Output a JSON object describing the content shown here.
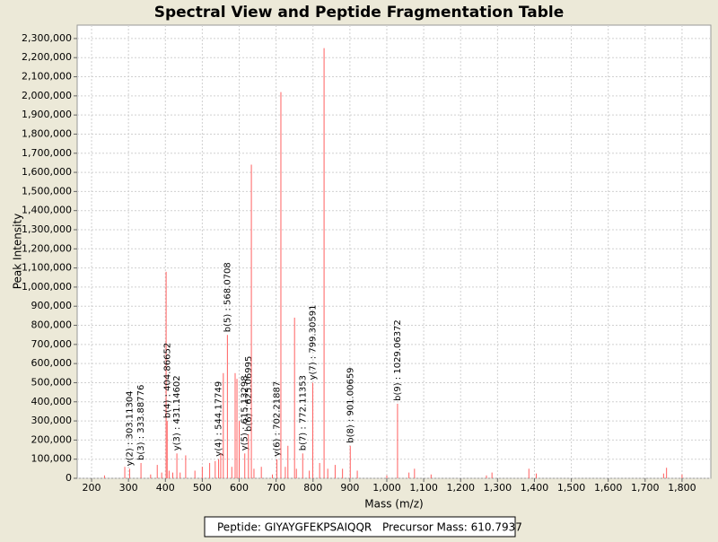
{
  "chart_data": {
    "type": "spectrum",
    "title": "Spectral View and Peptide Fragmentation Table",
    "x_label": "Mass (m/z)",
    "y_label": "Peak Intensity",
    "color": "#ff6060",
    "grid": true,
    "xlim": [
      161,
      1878
    ],
    "ylim": [
      0,
      2370000
    ],
    "xticks": [
      200,
      300,
      400,
      500,
      600,
      700,
      800,
      900,
      {
        "value": 1000,
        "label": "1,000"
      },
      {
        "value": 1100,
        "label": "1,100"
      },
      {
        "value": 1200,
        "label": "1,200"
      },
      {
        "value": 1300,
        "label": "1,300"
      },
      {
        "value": 1400,
        "label": "1,400"
      },
      {
        "value": 1500,
        "label": "1,500"
      },
      {
        "value": 1600,
        "label": "1,600"
      },
      {
        "value": 1700,
        "label": "1,700"
      },
      {
        "value": 1800,
        "label": "1,800"
      }
    ],
    "yticks": [
      0,
      {
        "value": 100000,
        "label": "100,000"
      },
      {
        "value": 200000,
        "label": "200,000"
      },
      {
        "value": 300000,
        "label": "300,000"
      },
      {
        "value": 400000,
        "label": "400,000"
      },
      {
        "value": 500000,
        "label": "500,000"
      },
      {
        "value": 600000,
        "label": "600,000"
      },
      {
        "value": 700000,
        "label": "700,000"
      },
      {
        "value": 800000,
        "label": "800,000"
      },
      {
        "value": 900000,
        "label": "900,000"
      },
      {
        "value": 1000000,
        "label": "1,000,000"
      },
      {
        "value": 1100000,
        "label": "1,100,000"
      },
      {
        "value": 1200000,
        "label": "1,200,000"
      },
      {
        "value": 1300000,
        "label": "1,300,000"
      },
      {
        "value": 1400000,
        "label": "1,400,000"
      },
      {
        "value": 1500000,
        "label": "1,500,000"
      },
      {
        "value": 1600000,
        "label": "1,600,000"
      },
      {
        "value": 1700000,
        "label": "1,700,000"
      },
      {
        "value": 1800000,
        "label": "1,800,000"
      },
      {
        "value": 1900000,
        "label": "1,900,000"
      },
      {
        "value": 2000000,
        "label": "2,000,000"
      },
      {
        "value": 2100000,
        "label": "2,100,000"
      },
      {
        "value": 2200000,
        "label": "2,200,000"
      },
      {
        "value": 2300000,
        "label": "2,300,000"
      }
    ],
    "x": [
      235,
      290,
      303.11304,
      333.88776,
      360,
      378,
      390,
      402,
      404.86652,
      410,
      420,
      431.14602,
      440,
      455,
      480,
      500,
      520,
      535,
      544.17749,
      550,
      557,
      568.0708,
      580,
      589,
      594,
      600,
      615.13298,
      625.06995,
      633,
      640,
      660,
      690,
      702.21887,
      713,
      725,
      732,
      750,
      755,
      772.11353,
      790,
      799.30591,
      818,
      830,
      840,
      860,
      880,
      901.00659,
      920,
      1000,
      1029.06372,
      1060,
      1075,
      1120,
      1270,
      1285,
      1385,
      1405,
      1750,
      1758,
      1800
    ],
    "values": [
      15000,
      60000,
      50000,
      80000,
      20000,
      70000,
      30000,
      1080000,
      300000,
      40000,
      30000,
      130000,
      30000,
      120000,
      40000,
      60000,
      80000,
      90000,
      100000,
      130000,
      550000,
      750000,
      60000,
      550000,
      520000,
      300000,
      130000,
      230000,
      1640000,
      50000,
      60000,
      20000,
      100000,
      2020000,
      60000,
      170000,
      840000,
      50000,
      130000,
      40000,
      500000,
      80000,
      2250000,
      50000,
      70000,
      50000,
      170000,
      40000,
      15000,
      390000,
      30000,
      50000,
      20000,
      15000,
      30000,
      50000,
      25000,
      25000,
      55000,
      20000
    ],
    "peak_labels": [
      null,
      null,
      "y(2) : 303.11304",
      "b(3) : 333.88776",
      null,
      null,
      null,
      null,
      "b(4) : 404.86652",
      null,
      null,
      "y(3) : 431.14602",
      null,
      null,
      null,
      null,
      null,
      null,
      "y(4) : 544.17749",
      null,
      null,
      "b(5) : 568.0708",
      null,
      null,
      null,
      null,
      "y(5) : 615.13298",
      "b(6) : 625.06995",
      null,
      null,
      null,
      null,
      "y(6) : 702.21887",
      null,
      null,
      null,
      null,
      null,
      "b(7) : 772.11353",
      null,
      "y(7) : 799.30591",
      null,
      null,
      null,
      null,
      null,
      "b(8) : 901.00659",
      null,
      null,
      "b(9) : 1029.06372",
      null,
      null,
      null,
      null,
      null,
      null,
      null,
      null,
      null,
      null
    ]
  },
  "footer": {
    "peptide": "Peptide: GIYAYGFEKPSAIQQR",
    "precursor": "Precursor Mass: 610.7937"
  }
}
